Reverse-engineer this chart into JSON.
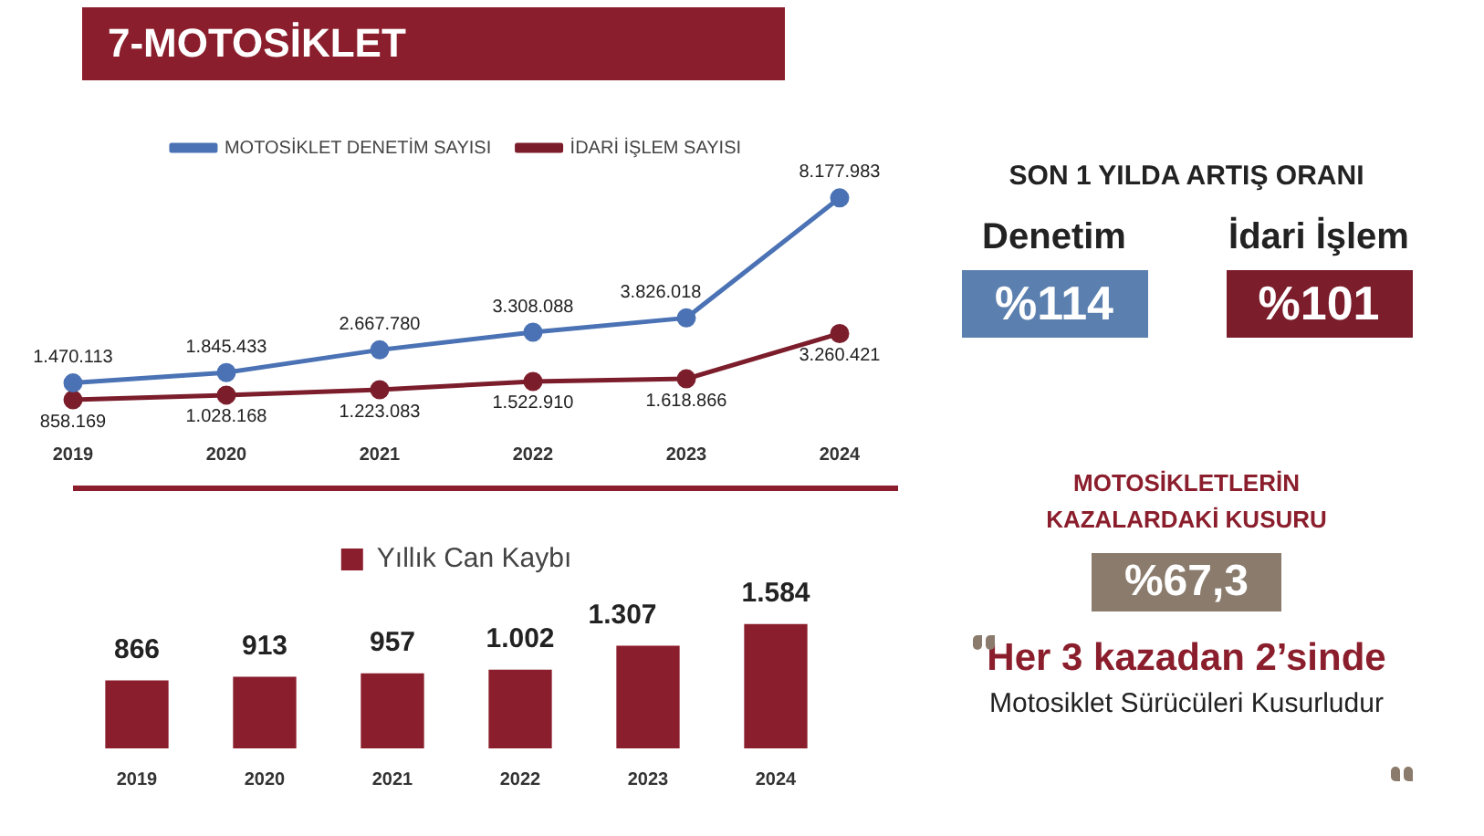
{
  "chart_data": [
    {
      "type": "line",
      "title": "7-MOTOSİKLET",
      "categories": [
        "2019",
        "2020",
        "2021",
        "2022",
        "2023",
        "2024"
      ],
      "marker": "circle",
      "legend": "top",
      "tick_labels": "x",
      "series": [
        {
          "name": "MOTOSİKLET DENETİM SAYISI",
          "color": "#4a72b4",
          "values": [
            1470113,
            1845433,
            2667780,
            3308088,
            3826018,
            8177983
          ],
          "value_labels": [
            "1.470.113",
            "1.845.433",
            "2.667.780",
            "3.308.088",
            "3.826.018",
            "8.177.983"
          ]
        },
        {
          "name": "İDARİ İŞLEM SAYISI",
          "color": "#7b1d2b",
          "values": [
            858169,
            1028168,
            1223083,
            1522910,
            1618866,
            3260421
          ],
          "value_labels": [
            "858.169",
            "1.028.168",
            "1.223.083",
            "1.522.910",
            "1.618.866",
            "3.260.421"
          ]
        }
      ]
    },
    {
      "type": "bar",
      "categories": [
        "2019",
        "2020",
        "2021",
        "2022",
        "2023",
        "2024"
      ],
      "legend": "top",
      "tick_labels": "x",
      "series": [
        {
          "name": "Yıllık Can Kaybı",
          "color": "#8b1e2c",
          "values": [
            866,
            913,
            957,
            1002,
            1307,
            1584
          ],
          "value_labels": [
            "866",
            "913",
            "957",
            "1.002",
            "1.307",
            "1.584"
          ]
        }
      ]
    },
    {
      "type": "other",
      "title": "SON 1 YILDA ARTIŞ ORANI",
      "categories": [
        "Denetim",
        "İdari İşlem"
      ],
      "value_labels": [
        "%114",
        "%101"
      ],
      "colors": [
        "#5b7fae",
        "#7b1d2b"
      ]
    },
    {
      "type": "other",
      "title": "MOTOSİKLETLERİN KAZALARDAKİ KUSURU",
      "annotations": [
        "%67,3",
        "Her 3 kazadan 2’sinde",
        "Motosiklet Sürücüleri Kusurludur"
      ]
    }
  ]
}
